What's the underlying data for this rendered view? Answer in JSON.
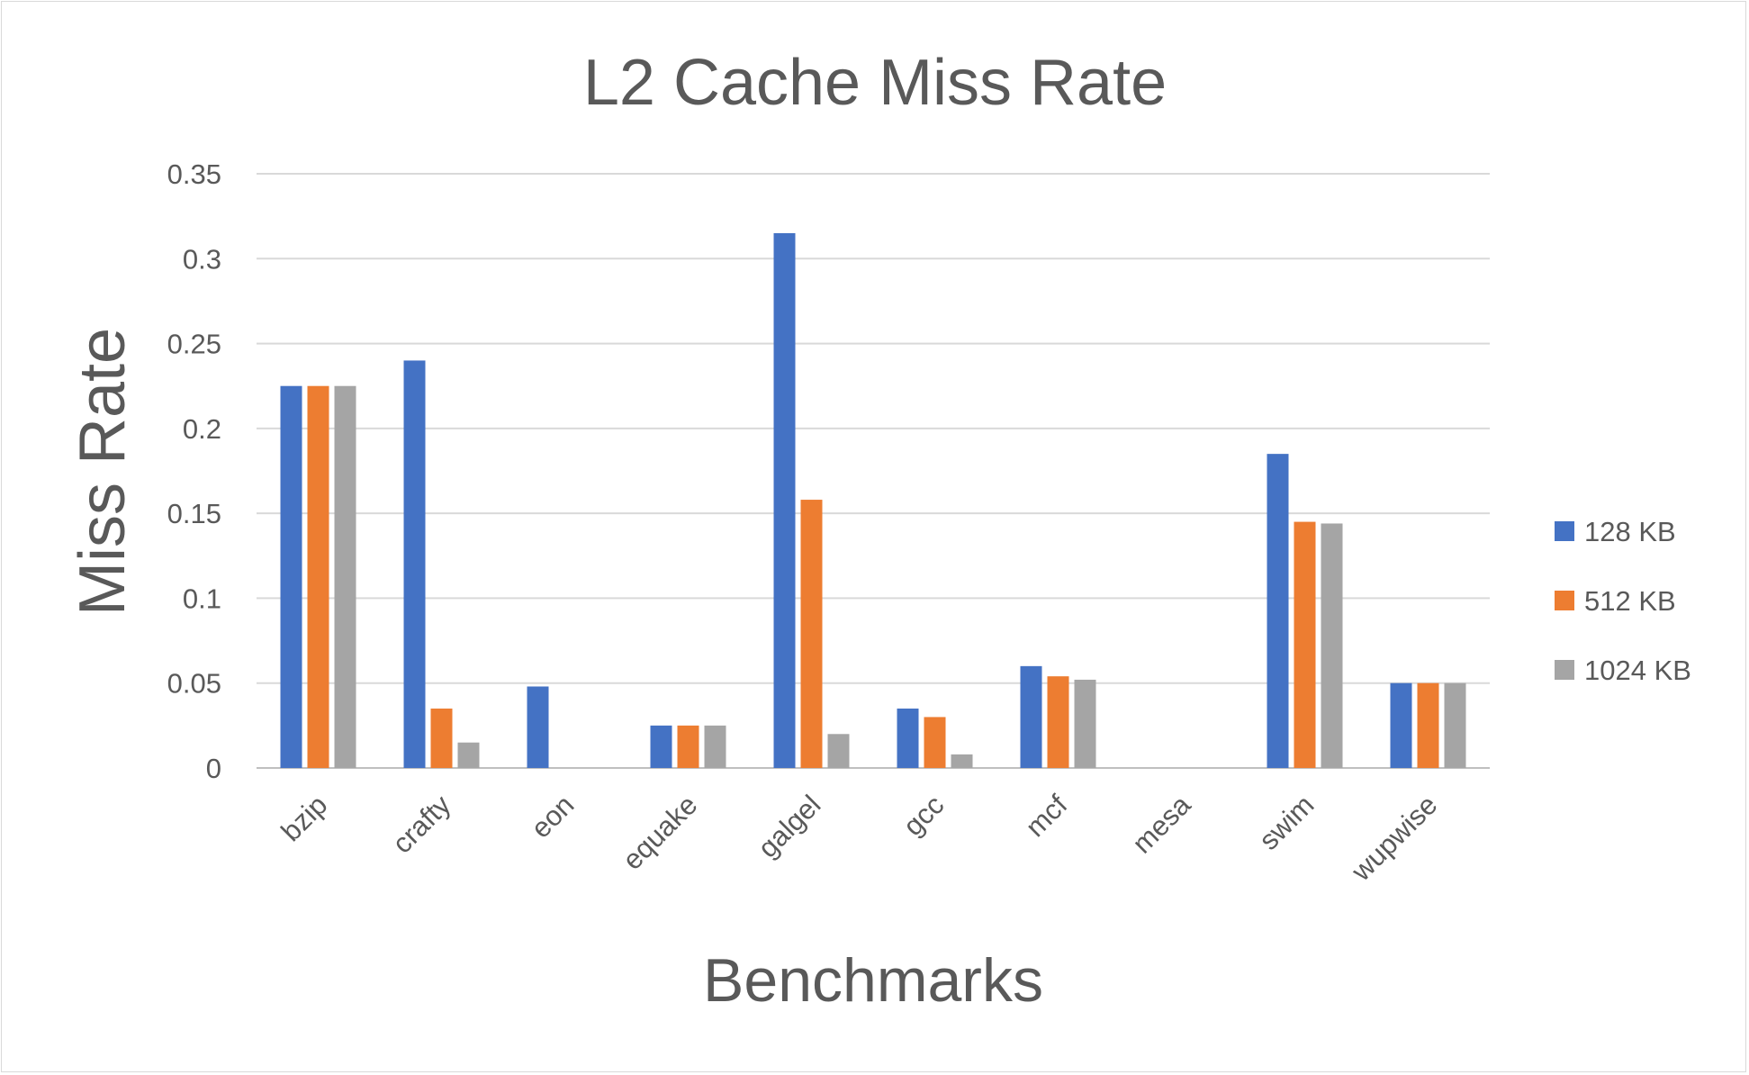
{
  "chart_data": {
    "type": "bar",
    "title": "L2 Cache Miss Rate",
    "xlabel": "Benchmarks",
    "ylabel": "Miss Rate",
    "categories": [
      "bzip",
      "crafty",
      "eon",
      "equake",
      "galgel",
      "gcc",
      "mcf",
      "mesa",
      "swim",
      "wupwise"
    ],
    "series": [
      {
        "name": "128 KB",
        "color": "#4472c4",
        "values": [
          0.225,
          0.24,
          0.048,
          0.025,
          0.315,
          0.035,
          0.06,
          0,
          0.185,
          0.05
        ]
      },
      {
        "name": "512 KB",
        "color": "#ed7d31",
        "values": [
          0.225,
          0.035,
          0,
          0.025,
          0.158,
          0.03,
          0.054,
          0,
          0.145,
          0.05
        ]
      },
      {
        "name": "1024 KB",
        "color": "#a5a5a5",
        "values": [
          0.225,
          0.015,
          0,
          0.025,
          0.02,
          0.008,
          0.052,
          0,
          0.144,
          0.05
        ]
      }
    ],
    "yticks": [
      "0",
      "0.05",
      "0.1",
      "0.15",
      "0.2",
      "0.25",
      "0.3",
      "0.35"
    ],
    "ylim": [
      0,
      0.35
    ],
    "grid": true,
    "legend_position": "right"
  }
}
